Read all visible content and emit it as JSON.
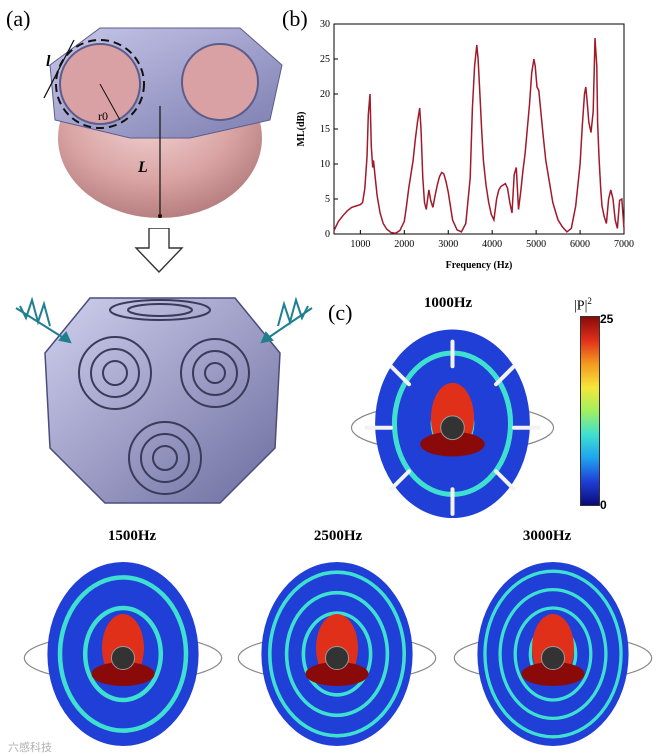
{
  "panels": {
    "a": "(a)",
    "b": "(b)",
    "c": "(c)"
  },
  "diagram_a": {
    "labels": {
      "l": "l",
      "r0": "r0",
      "L": "L"
    }
  },
  "chart_data": {
    "type": "line",
    "title": "",
    "xlabel": "Frequency (Hz)",
    "ylabel": "ML(dB)",
    "xlim": [
      400,
      7000
    ],
    "ylim": [
      0,
      30
    ],
    "xticks": [
      1000,
      2000,
      3000,
      4000,
      5000,
      6000,
      7000
    ],
    "yticks": [
      0,
      5,
      10,
      15,
      20,
      25,
      30
    ],
    "grid": false,
    "line_color": "#a01a2a",
    "series": [
      {
        "x": [
          400,
          500,
          600,
          700,
          800,
          900,
          1000,
          1050,
          1100,
          1150,
          1180,
          1220,
          1250,
          1280,
          1300,
          1330,
          1380,
          1450,
          1520,
          1600,
          1700,
          1800,
          1900,
          2000,
          2050,
          2100,
          2150,
          2200,
          2250,
          2300,
          2350,
          2380,
          2420,
          2460,
          2500,
          2530,
          2560,
          2600,
          2650,
          2700,
          2750,
          2800,
          2850,
          2900,
          2950,
          3000,
          3050,
          3100,
          3200,
          3300,
          3400,
          3500,
          3550,
          3600,
          3650,
          3680,
          3720,
          3760,
          3800,
          3860,
          3920,
          3980,
          4040,
          4100,
          4150,
          4200,
          4250,
          4300,
          4350,
          4400,
          4450,
          4500,
          4550,
          4600,
          4650,
          4700,
          4750,
          4800,
          4850,
          4900,
          4950,
          4980,
          5020,
          5060,
          5100,
          5160,
          5220,
          5300,
          5380,
          5450,
          5500,
          5600,
          5700,
          5800,
          5900,
          6000,
          6050,
          6100,
          6130,
          6160,
          6200,
          6250,
          6300,
          6340,
          6380,
          6400,
          6430,
          6470,
          6500,
          6550,
          6600,
          6650,
          6700,
          6750,
          6800,
          6850,
          6900,
          6950,
          7000
        ],
        "y": [
          0.5,
          1.8,
          2.6,
          3.3,
          3.8,
          4.0,
          4.2,
          4.5,
          6.5,
          11.0,
          17.0,
          20.0,
          12.5,
          9.5,
          10.5,
          8.5,
          5.5,
          3.0,
          1.5,
          0.7,
          0.2,
          0.1,
          0.5,
          1.8,
          4.0,
          6.5,
          8.5,
          10.5,
          13.5,
          16.0,
          18.0,
          15.0,
          8.0,
          4.5,
          3.5,
          5.0,
          6.3,
          4.8,
          3.8,
          5.5,
          7.0,
          8.2,
          8.8,
          8.6,
          7.5,
          6.0,
          4.0,
          2.0,
          0.6,
          0.3,
          1.5,
          8.0,
          18.0,
          24.0,
          27.0,
          25.0,
          20.0,
          15.0,
          10.5,
          7.0,
          4.5,
          2.8,
          2.0,
          5.0,
          6.3,
          6.8,
          7.0,
          7.2,
          6.5,
          4.5,
          3.0,
          8.5,
          9.5,
          3.5,
          6.0,
          9.0,
          11.5,
          15.0,
          18.5,
          23.0,
          25.0,
          24.0,
          21.0,
          20.5,
          18.0,
          14.0,
          10.5,
          7.5,
          4.5,
          3.0,
          2.0,
          1.0,
          0.3,
          0.8,
          4.0,
          10.0,
          15.5,
          20.0,
          21.0,
          19.0,
          16.0,
          14.5,
          17.5,
          28.0,
          24.0,
          16.0,
          11.0,
          6.5,
          4.0,
          2.5,
          1.5,
          5.0,
          6.3,
          5.0,
          2.0,
          0.8,
          4.8,
          5.0,
          0.8
        ]
      }
    ]
  },
  "maps": [
    {
      "title": "1000Hz"
    },
    {
      "title": "1500Hz"
    },
    {
      "title": "2500Hz"
    },
    {
      "title": "3000Hz"
    }
  ],
  "colorbar": {
    "label": "|P|",
    "superscript": "2",
    "max": "25",
    "min": "0",
    "colors": [
      "#0b0b7a",
      "#1f3fd6",
      "#1fa3ef",
      "#3fe0d0",
      "#a0f060",
      "#f5e63a",
      "#f59a1e",
      "#e0301a",
      "#8a0a0a"
    ]
  },
  "watermark": "六感科技"
}
